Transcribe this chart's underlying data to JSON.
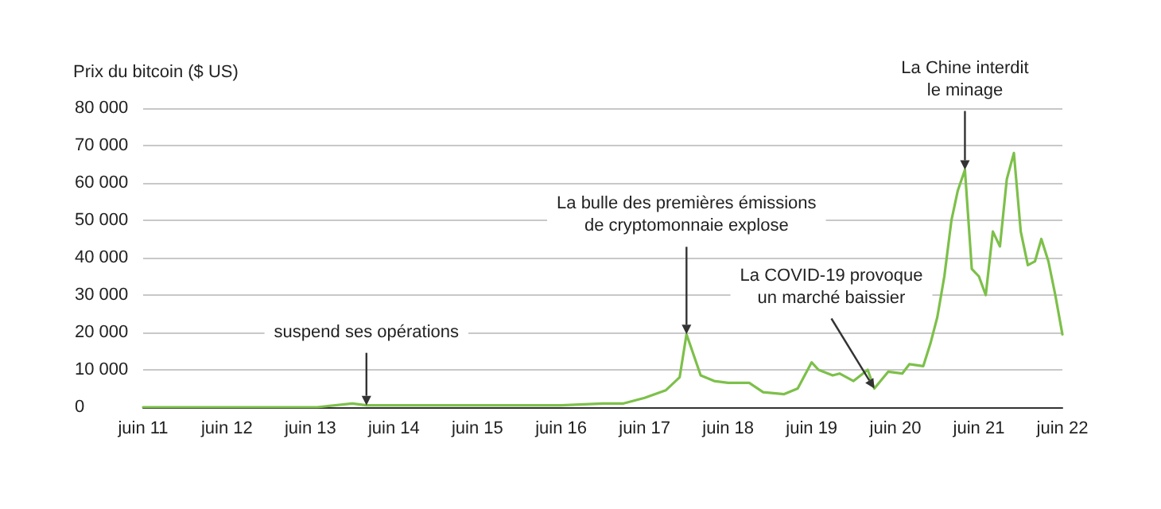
{
  "chart_data": {
    "type": "line",
    "ylabel": "Prix du bitcoin ($ US)",
    "x": [
      "2011-06",
      "2011-11",
      "2012-06",
      "2012-12",
      "2013-04",
      "2013-07",
      "2013-12",
      "2014-02",
      "2014-06",
      "2014-12",
      "2015-06",
      "2015-12",
      "2016-06",
      "2016-12",
      "2017-03",
      "2017-06",
      "2017-09",
      "2017-11",
      "2017-12",
      "2018-02",
      "2018-04",
      "2018-06",
      "2018-09",
      "2018-11",
      "2019-02",
      "2019-04",
      "2019-06",
      "2019-07",
      "2019-09",
      "2019-10",
      "2019-12",
      "2020-02",
      "2020-03",
      "2020-05",
      "2020-07",
      "2020-08",
      "2020-10",
      "2020-11",
      "2020-12",
      "2021-01",
      "2021-02",
      "2021-03",
      "2021-04",
      "2021-05",
      "2021-06",
      "2021-07",
      "2021-08",
      "2021-09",
      "2021-10",
      "2021-11",
      "2021-12",
      "2022-01",
      "2022-02",
      "2022-03",
      "2022-04",
      "2022-05",
      "2022-06"
    ],
    "series": [
      {
        "color": "#7dc04a",
        "values": [
          0,
          0,
          0,
          0,
          0,
          0,
          1000,
          500,
          500,
          500,
          500,
          500,
          500,
          1000,
          1000,
          2500,
          4500,
          8000,
          19500,
          8500,
          7000,
          6500,
          6500,
          4000,
          3500,
          5000,
          12000,
          10000,
          8500,
          9000,
          7000,
          10000,
          5000,
          9500,
          9000,
          11500,
          11000,
          17000,
          24000,
          35000,
          50000,
          58000,
          63500,
          37000,
          35000,
          30000,
          47000,
          43000,
          61000,
          68000,
          47000,
          38000,
          39000,
          45000,
          39000,
          30000,
          19500
        ]
      }
    ],
    "xlim": [
      "2011-06",
      "2022-06"
    ],
    "xticks": [
      {
        "value": "2011-06",
        "label": "juin 11"
      },
      {
        "value": "2012-06",
        "label": "juin 12"
      },
      {
        "value": "2013-06",
        "label": "juin 13"
      },
      {
        "value": "2014-06",
        "label": "juin 14"
      },
      {
        "value": "2015-06",
        "label": "juin 15"
      },
      {
        "value": "2016-06",
        "label": "juin 16"
      },
      {
        "value": "2017-06",
        "label": "juin 17"
      },
      {
        "value": "2018-06",
        "label": "juin 18"
      },
      {
        "value": "2019-06",
        "label": "juin 19"
      },
      {
        "value": "2020-06",
        "label": "juin 20"
      },
      {
        "value": "2021-06",
        "label": "juin 21"
      },
      {
        "value": "2022-06",
        "label": "juin 22"
      }
    ],
    "ylim": [
      0,
      80000
    ],
    "yticks": [
      {
        "value": 0,
        "label": "0"
      },
      {
        "value": 10000,
        "label": "10 000"
      },
      {
        "value": 20000,
        "label": "20 000"
      },
      {
        "value": 30000,
        "label": "30 000"
      },
      {
        "value": 40000,
        "label": "40 000"
      },
      {
        "value": 50000,
        "label": "50 000"
      },
      {
        "value": 60000,
        "label": "60 000"
      },
      {
        "value": 70000,
        "label": "70 000"
      },
      {
        "value": 80000,
        "label": "80 000"
      }
    ],
    "grid": "y",
    "marker": "none",
    "line_style": "solid",
    "annotations": [
      {
        "text": "suspend ses opérations",
        "x": "2014-02",
        "y": 500
      },
      {
        "text": "La bulle des premières émissions\nde cryptomonnaie explose",
        "x": "2017-12",
        "y": 19500
      },
      {
        "text": "La COVID-19 provoque\nun marché baissier",
        "x": "2020-03",
        "y": 5000
      },
      {
        "text": "La Chine interdit\nle minage",
        "x": "2021-04",
        "y": 63500
      }
    ]
  }
}
